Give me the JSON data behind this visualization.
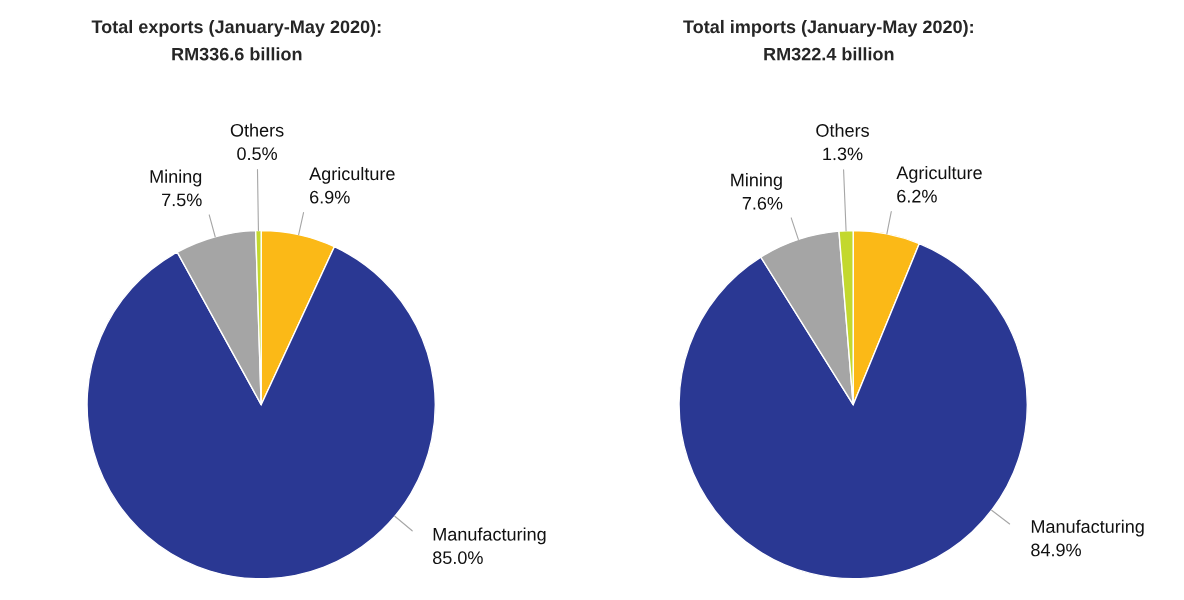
{
  "chart_data": [
    {
      "type": "pie",
      "title": "Total exports (January-May 2020):\nRM336.6 billion",
      "categories": [
        "Agriculture",
        "Manufacturing",
        "Mining",
        "Others"
      ],
      "values": [
        6.9,
        85.0,
        7.5,
        0.5
      ],
      "value_labels": [
        "6.9%",
        "85.0%",
        "7.5%",
        "0.5%"
      ],
      "colors": [
        "#fbb917",
        "#2a3893",
        "#a5a5a5",
        "#c3d82e"
      ],
      "legend": false
    },
    {
      "type": "pie",
      "title": "Total imports (January-May 2020):\nRM322.4 billion",
      "categories": [
        "Agriculture",
        "Manufacturing",
        "Mining",
        "Others"
      ],
      "values": [
        6.2,
        84.9,
        7.6,
        1.3
      ],
      "value_labels": [
        "6.2%",
        "84.9%",
        "7.6%",
        "1.3%"
      ],
      "colors": [
        "#fbb917",
        "#2a3893",
        "#a5a5a5",
        "#c3d82e"
      ],
      "legend": false
    }
  ]
}
